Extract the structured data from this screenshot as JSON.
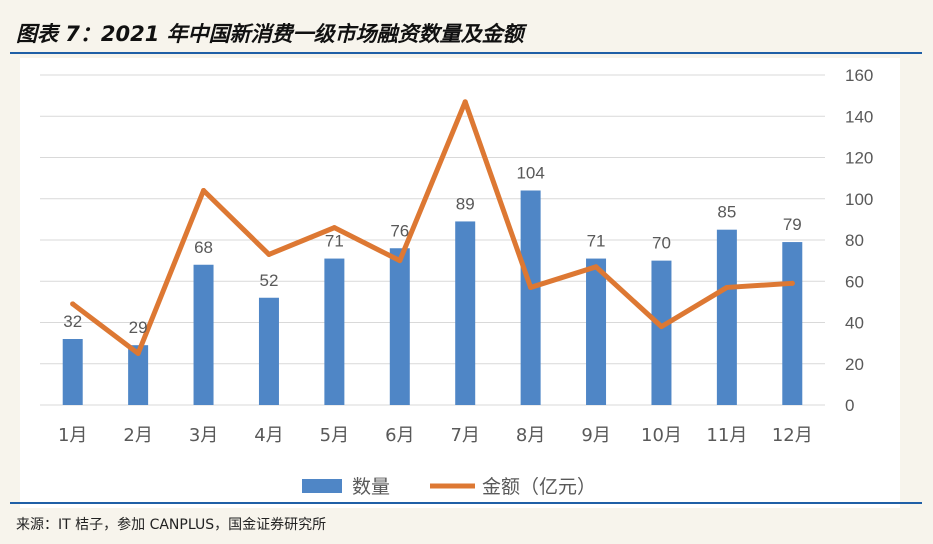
{
  "title": "图表 7：2021 年中国新消费一级市场融资数量及金额",
  "source": "来源：IT 桔子，参加 CANPLUS，国金证券研究所",
  "colors": {
    "bar": "#4f86c6",
    "line": "#dd7833",
    "grid": "#d9d9d9",
    "text": "#595959"
  },
  "chart_data": {
    "type": "bar",
    "categories": [
      "1月",
      "2月",
      "3月",
      "4月",
      "5月",
      "6月",
      "7月",
      "8月",
      "9月",
      "10月",
      "11月",
      "12月"
    ],
    "series": [
      {
        "name": "数量",
        "type": "bar",
        "values": [
          32,
          29,
          68,
          52,
          71,
          76,
          89,
          104,
          71,
          70,
          85,
          79
        ]
      },
      {
        "name": "金额（亿元）",
        "type": "line",
        "values": [
          49,
          25,
          104,
          73,
          86,
          70,
          147,
          57,
          67,
          38,
          57,
          59
        ]
      }
    ],
    "ylim": [
      0,
      160
    ],
    "yticks": [
      0,
      20,
      40,
      60,
      80,
      100,
      120,
      140,
      160
    ],
    "grid": true,
    "legend": "bottom-center"
  }
}
